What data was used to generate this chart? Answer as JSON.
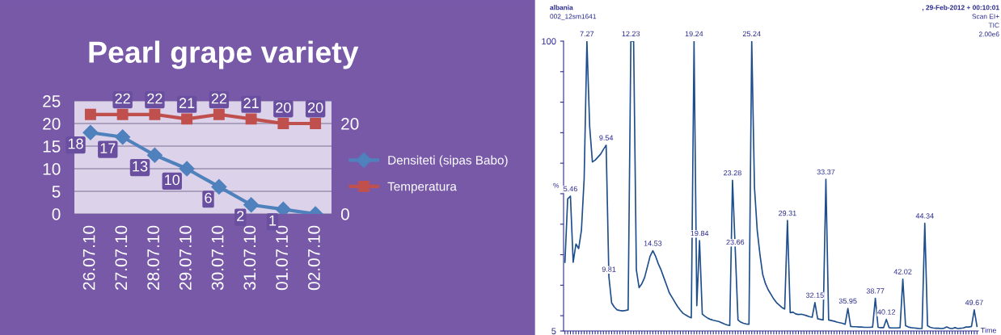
{
  "chart_data": [
    {
      "type": "line",
      "title": "Pearl grape variety",
      "categories": [
        "26.07.10",
        "27.07.10",
        "28.07.10",
        "29.07.10",
        "30.07.10",
        "31.07.10",
        "01.07.10",
        "02.07.10"
      ],
      "series": [
        {
          "name": "Densiteti (sipas Babo)",
          "color": "#4f81bd",
          "marker": "diamond",
          "values": [
            18,
            17,
            13,
            10,
            6,
            2,
            1,
            0
          ],
          "value_labels": [
            "18",
            "17",
            "13",
            "10",
            "6",
            "2",
            "1",
            null
          ]
        },
        {
          "name": "Temperatura",
          "color": "#c0504d",
          "marker": "square",
          "axis": "y2",
          "values": [
            22,
            22,
            22,
            21,
            22,
            21,
            20,
            20
          ],
          "value_labels": [
            null,
            "22",
            "22",
            "21",
            "22",
            "21",
            "20",
            "20"
          ]
        }
      ],
      "ylim": [
        0,
        25
      ],
      "yticks": [
        0,
        5,
        10,
        15,
        20,
        25
      ],
      "y2lim": [
        0,
        25
      ],
      "y2ticks": [
        0,
        20
      ],
      "grid": "y",
      "legend": "right"
    },
    {
      "type": "line",
      "xlabel": "Time",
      "ylabel": "%",
      "annotations": [
        "albania",
        "002_12sm1641",
        ", 29-Feb-2012 + 00:10:01",
        "Scan EI+",
        "TIC",
        "2.00e6",
        {
          "text": "5.46",
          "y": 49.2
        },
        {
          "text": "7.27",
          "y": 100
        },
        {
          "text": "9.54",
          "y": 65.9
        },
        {
          "text": "9.81",
          "y": 22.8
        },
        {
          "text": "12.23",
          "y": 100
        },
        {
          "text": "14.53",
          "y": 31.3
        },
        {
          "text": "19.24",
          "y": 100
        },
        {
          "text": "19.84",
          "y": 34.6
        },
        {
          "text": "23.28",
          "y": 54.4
        },
        {
          "text": "23.66",
          "y": 31.7
        },
        {
          "text": "25.24",
          "y": 100
        },
        {
          "text": "29.31",
          "y": 41.2
        },
        {
          "text": "32.15",
          "y": 14.3
        },
        {
          "text": "33.37",
          "y": 54.7
        },
        {
          "text": "35.95",
          "y": 12.4
        },
        {
          "text": "38.77",
          "y": 15.7
        },
        {
          "text": "40.12",
          "y": 8.8
        },
        {
          "text": "42.02",
          "y": 22.0
        },
        {
          "text": "44.34",
          "y": 40.3
        },
        {
          "text": "49.67",
          "y": 11.9
        }
      ],
      "categories": [
        null,
        null,
        null,
        null,
        null,
        null,
        null,
        null,
        null,
        null,
        null,
        null,
        null,
        null,
        null,
        null,
        null,
        null,
        null,
        null,
        null,
        null,
        null,
        null,
        null,
        null,
        null,
        null,
        null,
        null,
        null,
        null,
        null,
        null,
        null,
        null,
        null,
        null,
        null,
        null,
        null,
        null,
        null,
        null,
        null,
        null,
        null,
        null,
        null,
        null,
        null,
        null,
        null,
        null,
        null,
        null,
        null,
        null,
        null,
        null,
        null,
        null,
        null,
        null,
        null,
        null,
        null,
        null,
        null,
        null,
        null,
        null,
        null,
        null,
        null,
        null,
        null,
        null,
        null,
        null,
        null,
        null,
        null,
        null,
        null,
        null,
        null,
        null,
        null,
        null,
        null,
        null,
        null,
        null,
        null,
        null,
        null,
        null,
        null,
        null,
        null,
        null,
        null,
        null,
        null,
        null,
        null,
        null,
        null,
        null,
        null,
        null,
        null,
        null,
        null,
        null,
        null,
        null,
        null,
        null,
        null,
        null,
        null,
        null,
        null,
        null,
        null,
        null,
        null,
        null,
        null,
        null,
        null,
        null,
        null,
        null,
        null,
        null,
        null,
        null,
        null,
        null,
        null,
        null,
        null,
        null,
        null,
        null,
        null,
        null,
        null
      ],
      "series": [
        {
          "color": "#1f4e8c",
          "values": [
            27.5,
            48.3,
            49.2,
            27.5,
            33.5,
            32,
            38,
            55,
            100,
            72,
            60.4,
            61,
            62,
            63,
            64.5,
            65.9,
            22.8,
            14.2,
            12.8,
            11.9,
            11.7,
            11.6,
            11.7,
            11.9,
            100,
            100,
            25,
            19.2,
            20.5,
            22.5,
            26,
            29.5,
            31.3,
            29.5,
            27,
            25,
            22.5,
            20,
            17.5,
            16,
            14.5,
            13,
            11.8,
            10.8,
            10.2,
            9.7,
            9.3,
            100,
            13.3,
            34.6,
            10.5,
            9.8,
            9.2,
            8.8,
            8.5,
            8.3,
            8.1,
            7.7,
            7.3,
            7.0,
            6.8,
            54.4,
            31.7,
            8.6,
            7.9,
            7.5,
            7.3,
            7.2,
            100,
            52,
            38,
            30,
            23.5,
            20.5,
            18.5,
            17,
            15.5,
            14.3,
            13.5,
            12.7,
            12.2,
            41.2,
            11.0,
            11.2,
            10.6,
            10.4,
            10.5,
            10.3,
            10.0,
            9.7,
            9.5,
            14.3,
            9.0,
            8.8,
            8.6,
            54.7,
            8.6,
            8.4,
            8.2,
            7.9,
            7.7,
            7.5,
            7.2,
            12.4,
            6.5,
            6.4,
            6.4,
            6.3,
            6.3,
            6.2,
            6.2,
            6.2,
            6.3,
            15.7,
            6.2,
            6.1,
            6.1,
            8.8,
            6.1,
            6.0,
            6.0,
            6.0,
            6.1,
            22.0,
            6.7,
            6.3,
            6.1,
            6.0,
            5.9,
            5.8,
            5.8,
            40.3,
            6.7,
            6.2,
            6.0,
            5.9,
            5.9,
            5.8,
            5.9,
            6.3,
            5.9,
            5.8,
            6.1,
            5.8,
            5.9,
            6.0,
            6.3,
            6.3,
            6.5,
            11.9,
            6.5
          ]
        }
      ],
      "ylim": [
        5,
        100
      ],
      "yticks": [
        5,
        {
          "value": 10,
          "label": null
        },
        {
          "value": 20,
          "label": null
        },
        {
          "value": 30,
          "label": null
        },
        {
          "value": 40,
          "label": null
        },
        {
          "value": 50,
          "label": null
        },
        {
          "value": 60,
          "label": null
        },
        {
          "value": 70,
          "label": null
        },
        {
          "value": 80,
          "label": null
        },
        {
          "value": 90,
          "label": null
        },
        100
      ],
      "tick_labels": "y"
    }
  ]
}
